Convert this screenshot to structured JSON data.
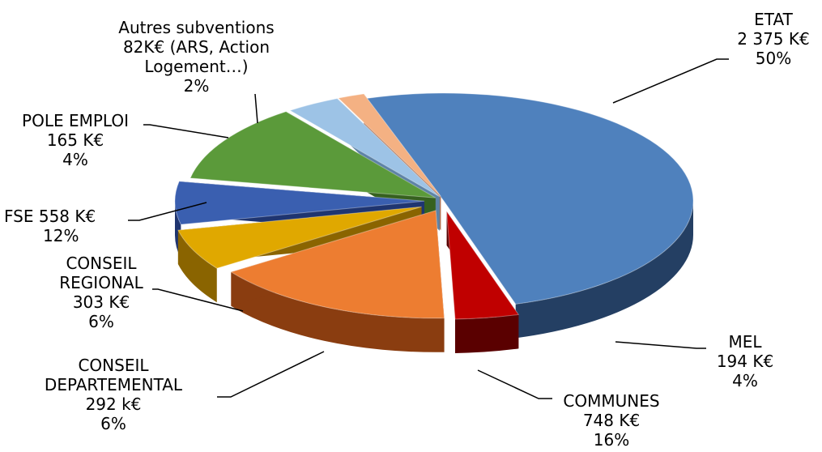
{
  "chart_data": {
    "type": "pie",
    "style": "3d-exploded",
    "total_unit": "K€",
    "slices": [
      {
        "key": "etat",
        "label_lines": [
          "ETAT",
          "2 375 K€",
          "50%"
        ],
        "value": 2375,
        "percent": 50,
        "color": "#4F81BD",
        "side_color": "#243F63"
      },
      {
        "key": "mel",
        "label_lines": [
          "MEL",
          "194 K€",
          "4%"
        ],
        "value": 194,
        "percent": 4,
        "color": "#C00000",
        "side_color": "#5A0000"
      },
      {
        "key": "communes",
        "label_lines": [
          "COMMUNES",
          "748 K€",
          "16%"
        ],
        "value": 748,
        "percent": 16,
        "color": "#ED7D31",
        "side_color": "#8A3D10"
      },
      {
        "key": "conseil-departemental",
        "label_lines": [
          "CONSEIL",
          "DEPARTEMENTAL",
          "292 k€",
          "6%"
        ],
        "value": 292,
        "percent": 6,
        "color": "#E0A800",
        "side_color": "#8A6400"
      },
      {
        "key": "conseil-regional",
        "label_lines": [
          "CONSEIL",
          "REGIONAL",
          "303 K€",
          "6%"
        ],
        "value": 303,
        "percent": 6,
        "color": "#3A5FB0",
        "side_color": "#1F3570"
      },
      {
        "key": "fse",
        "label_lines": [
          "FSE 558 K€",
          "12%"
        ],
        "value": 558,
        "percent": 12,
        "color": "#5B9A3A",
        "side_color": "#36611F"
      },
      {
        "key": "pole-emploi",
        "label_lines": [
          "POLE EMPLOI",
          "165 K€",
          "4%"
        ],
        "value": 165,
        "percent": 4,
        "color": "#9DC3E6",
        "side_color": "#5E83A6"
      },
      {
        "key": "autres",
        "label_lines": [
          "Autres subventions",
          "82K€ (ARS, Action",
          "Logement…)",
          "2%"
        ],
        "value": 82,
        "percent": 2,
        "color": "#F4B183",
        "side_color": "#B07050"
      }
    ]
  }
}
